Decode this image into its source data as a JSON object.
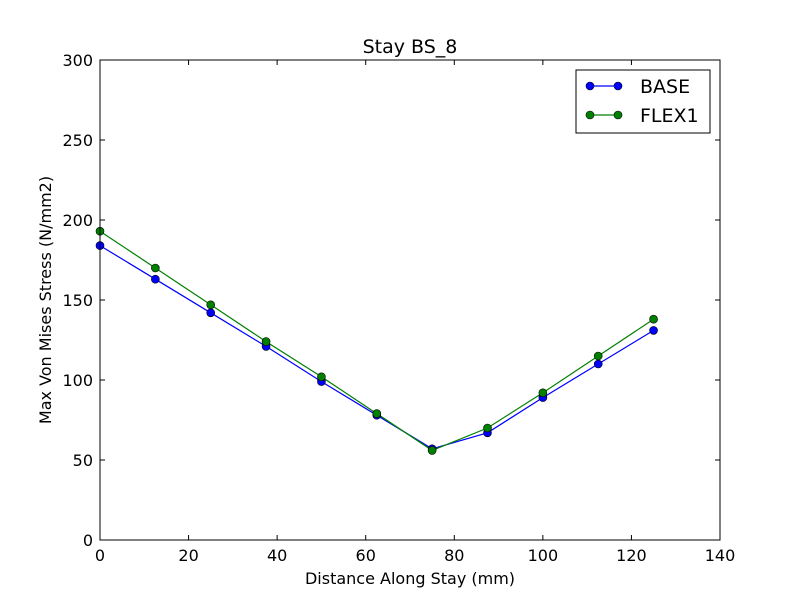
{
  "chart_data": {
    "type": "line",
    "title": "Stay BS_8",
    "xlabel": "Distance Along Stay (mm)",
    "ylabel": "Max Von Mises Stress (N/mm2)",
    "xlim": [
      0,
      140
    ],
    "ylim": [
      0,
      300
    ],
    "xticks": [
      "0",
      "20",
      "40",
      "60",
      "80",
      "100",
      "120",
      "140"
    ],
    "yticks": [
      "0",
      "50",
      "100",
      "150",
      "200",
      "250",
      "300"
    ],
    "grid": false,
    "legend_position": "top-right",
    "series": [
      {
        "name": "BASE",
        "color": "#0000ff",
        "marker": "circle",
        "x": [
          0,
          12.5,
          25,
          37.5,
          50,
          62.5,
          75,
          87.5,
          100,
          112.5,
          125
        ],
        "y": [
          184,
          163,
          142,
          121,
          99,
          78,
          57,
          67,
          89,
          110,
          131
        ]
      },
      {
        "name": "FLEX1",
        "color": "#008000",
        "marker": "circle",
        "x": [
          0,
          12.5,
          25,
          37.5,
          50,
          62.5,
          75,
          87.5,
          100,
          112.5,
          125
        ],
        "y": [
          193,
          170,
          147,
          124,
          102,
          79,
          56,
          70,
          92,
          115,
          138
        ]
      }
    ]
  }
}
